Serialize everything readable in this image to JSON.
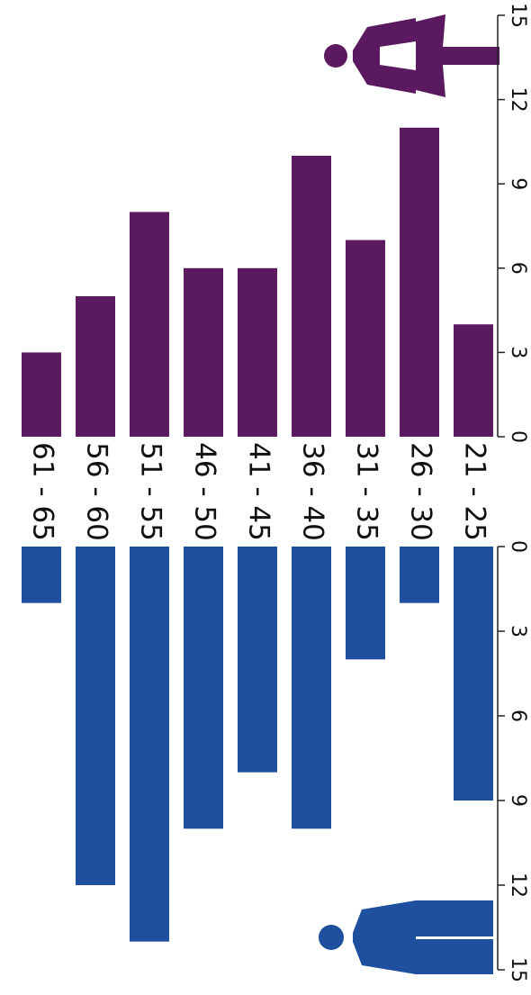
{
  "chart_data": {
    "type": "bar",
    "categories": [
      "61 - 65",
      "56 - 60",
      "51 - 55",
      "46 - 50",
      "41 - 45",
      "36 - 40",
      "31 - 35",
      "26 - 30",
      "21 - 25"
    ],
    "series": [
      {
        "color": "#5b1a60",
        "values": [
          3,
          5,
          8,
          6,
          6,
          10,
          7,
          11,
          4
        ]
      },
      {
        "color": "#1f4f9f",
        "values": [
          2,
          12,
          14,
          10,
          8,
          10,
          4,
          2,
          9
        ]
      }
    ],
    "ylim": [
      0,
      15
    ],
    "yticks": [
      0,
      3,
      6,
      9,
      12,
      15
    ]
  }
}
